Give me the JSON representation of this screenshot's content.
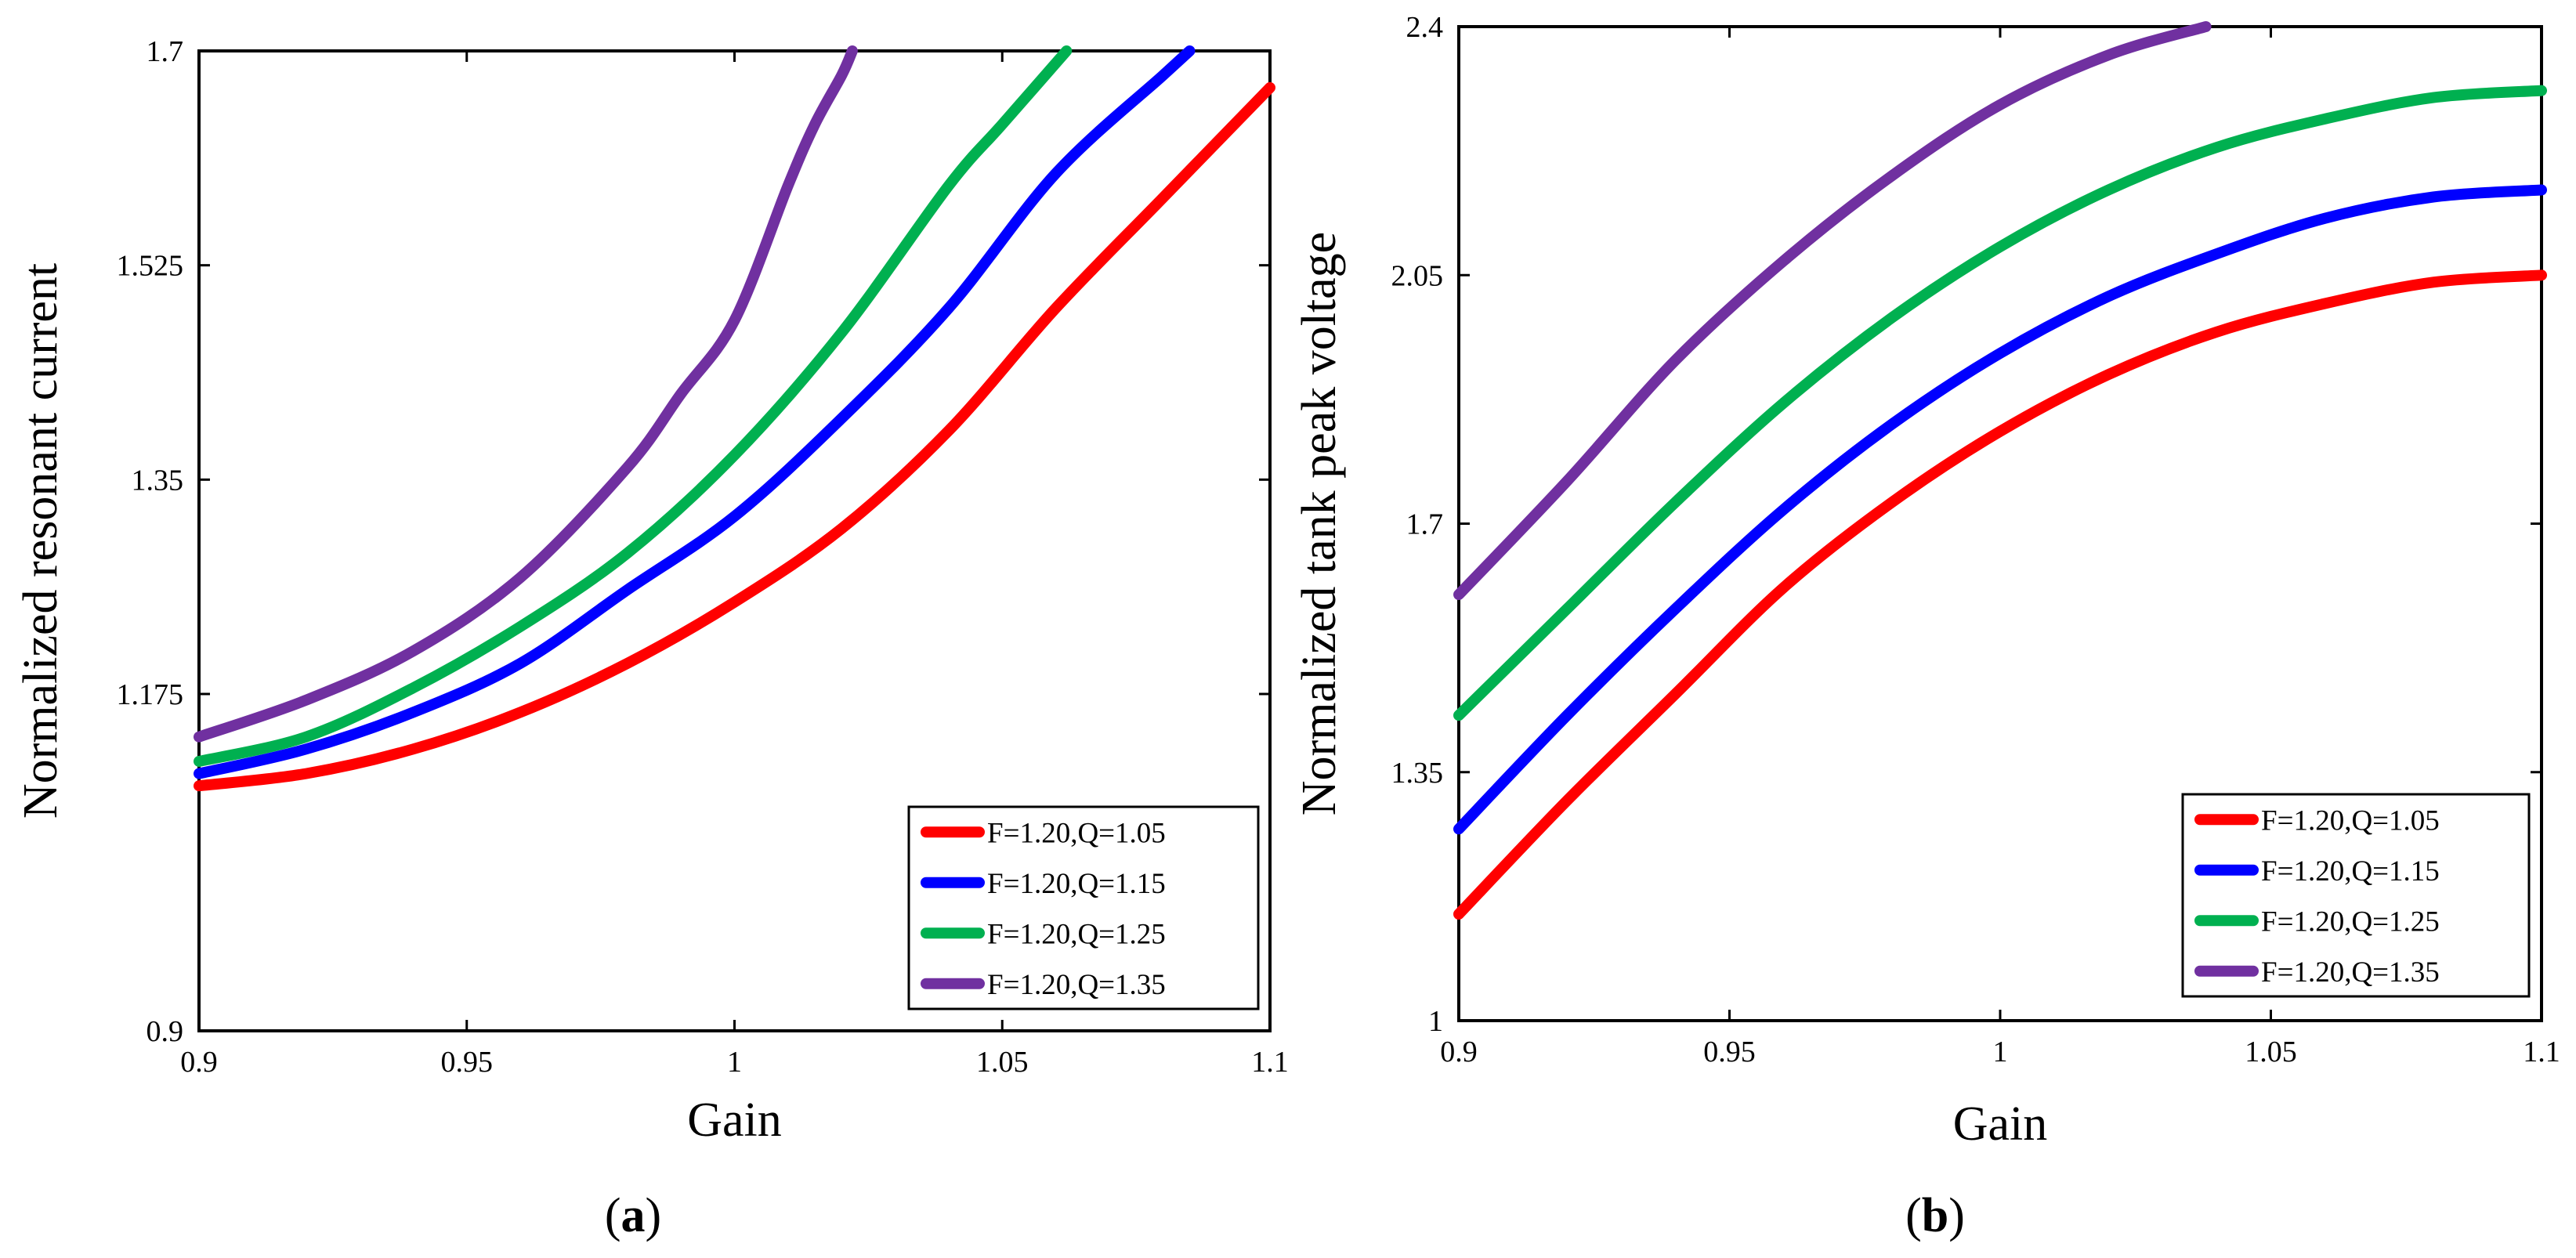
{
  "chart_data": [
    {
      "type": "line",
      "panel_label": "a",
      "xlabel": "Gain",
      "ylabel": "Normalized resonant current",
      "xlim": [
        0.9,
        1.1
      ],
      "ylim": [
        0.9,
        1.7
      ],
      "xticks": [
        "0.9",
        "0.95",
        "1",
        "1.05",
        "1.1"
      ],
      "yticks": [
        "0.9",
        "1.175",
        "1.35",
        "1.525",
        "1.7"
      ],
      "legend_position": "bottom-right",
      "series": [
        {
          "name": "F=1.20,Q=1.05",
          "color": "#ff0000",
          "x": [
            0.9,
            0.92,
            0.94,
            0.96,
            0.98,
            1.0,
            1.02,
            1.04,
            1.06,
            1.08,
            1.1
          ],
          "y": [
            1.1,
            1.11,
            1.13,
            1.16,
            1.2,
            1.25,
            1.31,
            1.39,
            1.49,
            1.58,
            1.67
          ]
        },
        {
          "name": "F=1.20,Q=1.15",
          "color": "#0000ff",
          "x": [
            0.9,
            0.92,
            0.94,
            0.96,
            0.98,
            1.0,
            1.02,
            1.04,
            1.06,
            1.08,
            1.085
          ],
          "y": [
            1.11,
            1.13,
            1.16,
            1.2,
            1.26,
            1.32,
            1.4,
            1.49,
            1.6,
            1.68,
            1.7
          ]
        },
        {
          "name": "F=1.20,Q=1.25",
          "color": "#00b050",
          "x": [
            0.9,
            0.92,
            0.94,
            0.96,
            0.98,
            1.0,
            1.02,
            1.04,
            1.05,
            1.062
          ],
          "y": [
            1.12,
            1.14,
            1.18,
            1.23,
            1.29,
            1.37,
            1.47,
            1.59,
            1.64,
            1.7
          ]
        },
        {
          "name": "F=1.20,Q=1.35",
          "color": "#7030a0",
          "x": [
            0.9,
            0.92,
            0.94,
            0.96,
            0.98,
            0.99,
            1.0,
            1.01,
            1.015,
            1.02,
            1.022
          ],
          "y": [
            1.14,
            1.17,
            1.21,
            1.27,
            1.36,
            1.42,
            1.48,
            1.59,
            1.64,
            1.68,
            1.7
          ]
        }
      ]
    },
    {
      "type": "line",
      "panel_label": "b",
      "xlabel": "Gain",
      "ylabel": "Normalized tank  peak voltage",
      "xlim": [
        0.9,
        1.1
      ],
      "ylim": [
        1.0,
        2.4
      ],
      "xticks": [
        "0.9",
        "0.95",
        "1",
        "1.05",
        "1.1"
      ],
      "yticks": [
        "1",
        "1.35",
        "1.7",
        "2.05",
        "2.4"
      ],
      "legend_position": "bottom-right",
      "series": [
        {
          "name": "F=1.20,Q=1.05",
          "color": "#ff0000",
          "x": [
            0.9,
            0.92,
            0.94,
            0.96,
            0.98,
            1.0,
            1.02,
            1.04,
            1.06,
            1.08,
            1.1
          ],
          "y": [
            1.15,
            1.31,
            1.46,
            1.61,
            1.73,
            1.83,
            1.91,
            1.97,
            2.01,
            2.04,
            2.05
          ]
        },
        {
          "name": "F=1.20,Q=1.15",
          "color": "#0000ff",
          "x": [
            0.9,
            0.92,
            0.94,
            0.96,
            0.98,
            1.0,
            1.02,
            1.04,
            1.06,
            1.08,
            1.1
          ],
          "y": [
            1.27,
            1.43,
            1.58,
            1.72,
            1.84,
            1.94,
            2.02,
            2.08,
            2.13,
            2.16,
            2.17
          ]
        },
        {
          "name": "F=1.20,Q=1.25",
          "color": "#00b050",
          "x": [
            0.9,
            0.92,
            0.94,
            0.96,
            0.98,
            1.0,
            1.02,
            1.04,
            1.06,
            1.08,
            1.1
          ],
          "y": [
            1.43,
            1.58,
            1.73,
            1.87,
            1.99,
            2.09,
            2.17,
            2.23,
            2.27,
            2.3,
            2.31
          ]
        },
        {
          "name": "F=1.20,Q=1.35",
          "color": "#7030a0",
          "x": [
            0.9,
            0.92,
            0.94,
            0.96,
            0.98,
            1.0,
            1.02,
            1.038
          ],
          "y": [
            1.6,
            1.76,
            1.93,
            2.07,
            2.19,
            2.29,
            2.36,
            2.4
          ]
        }
      ]
    }
  ]
}
